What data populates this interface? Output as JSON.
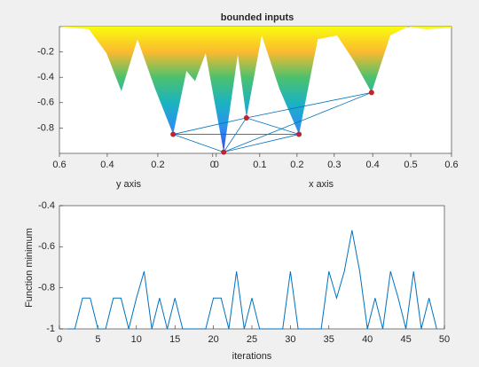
{
  "chart_data": [
    {
      "type": "surface",
      "title": "bounded inputs",
      "xlabel_left": "y axis",
      "xlabel_right": "x axis",
      "x": [
        0,
        0.075,
        0.12,
        0.158,
        0.199,
        0.244,
        0.29,
        0.324,
        0.346,
        0.373,
        0.419,
        0.455,
        0.477,
        0.516,
        0.561,
        0.611,
        0.659,
        0.708,
        0.753,
        0.796,
        0.844,
        0.889,
        0.934,
        1.0
      ],
      "values": [
        0,
        -0.02,
        -0.21,
        -0.51,
        -0.1,
        -0.49,
        -0.85,
        -0.35,
        -0.43,
        -0.21,
        -0.99,
        -0.22,
        -0.72,
        -0.07,
        -0.49,
        -0.85,
        -0.1,
        -0.07,
        -0.28,
        -0.52,
        -0.07,
        0,
        -0.02,
        -0.01
      ],
      "colormap": [
        "#f9fb0e",
        "#fbba2e",
        "#4dc16c",
        "#1bb3c0",
        "#2d8ff0",
        "#3d40e8"
      ],
      "points": {
        "x": [
          0.29,
          0.419,
          0.477,
          0.611,
          0.796
        ],
        "values": [
          -0.85,
          -0.99,
          -0.72,
          -0.85,
          -0.52
        ],
        "color": "#c0232f"
      },
      "edges": [
        [
          0,
          1
        ],
        [
          0,
          2
        ],
        [
          0,
          3
        ],
        [
          1,
          2
        ],
        [
          1,
          3
        ],
        [
          2,
          3
        ],
        [
          1,
          4
        ],
        [
          2,
          4
        ]
      ],
      "edge_color": "#0072bd",
      "xlim": [
        0,
        1
      ],
      "ylim": [
        -1,
        0
      ],
      "xticks": [
        {
          "value": 0,
          "label": "0.6"
        },
        {
          "value": 0.122,
          "label": "0.4"
        },
        {
          "value": 0.251,
          "label": "0.2"
        },
        {
          "value": 0.391,
          "label": "0"
        },
        {
          "value": 0.4,
          "label": "0"
        },
        {
          "value": 0.511,
          "label": "0.1"
        },
        {
          "value": 0.606,
          "label": "0.2"
        },
        {
          "value": 0.701,
          "label": "0.3"
        },
        {
          "value": 0.799,
          "label": "0.4"
        },
        {
          "value": 0.896,
          "label": "0.5"
        },
        {
          "value": 1.0,
          "label": "0.6"
        }
      ],
      "yticks": [
        -0.2,
        -0.4,
        -0.6,
        -0.8
      ]
    },
    {
      "type": "line",
      "xlabel": "iterations",
      "ylabel": "Function minimum",
      "x": [
        1,
        2,
        3,
        4,
        5,
        6,
        7,
        8,
        9,
        10,
        11,
        12,
        13,
        14,
        15,
        16,
        17,
        18,
        19,
        20,
        21,
        22,
        23,
        24,
        25,
        26,
        27,
        28,
        29,
        30,
        31,
        32,
        33,
        34,
        35,
        36,
        37,
        38,
        39,
        40,
        41,
        42,
        43,
        44,
        45,
        46,
        47,
        48,
        49
      ],
      "series": [
        {
          "color": "#0072bd",
          "values": [
            -1,
            -1,
            -0.85,
            -0.85,
            -1,
            -1,
            -0.85,
            -0.85,
            -1,
            -0.85,
            -0.72,
            -1,
            -0.85,
            -1,
            -0.85,
            -1,
            -1,
            -1,
            -1,
            -0.85,
            -0.85,
            -1,
            -0.72,
            -1,
            -0.85,
            -1,
            -1,
            -1,
            -1,
            -0.72,
            -1,
            -1,
            -1,
            -1,
            -0.72,
            -0.85,
            -0.72,
            -0.52,
            -0.72,
            -1,
            -0.85,
            -1,
            -0.72,
            -0.85,
            -1,
            -0.72,
            -1,
            -0.85,
            -1
          ]
        }
      ],
      "xlim": [
        0,
        50
      ],
      "ylim": [
        -1,
        -0.4
      ],
      "xticks": [
        0,
        5,
        10,
        15,
        20,
        25,
        30,
        35,
        40,
        45,
        50
      ],
      "yticks": [
        -1,
        -0.8,
        -0.6,
        -0.4
      ]
    }
  ]
}
